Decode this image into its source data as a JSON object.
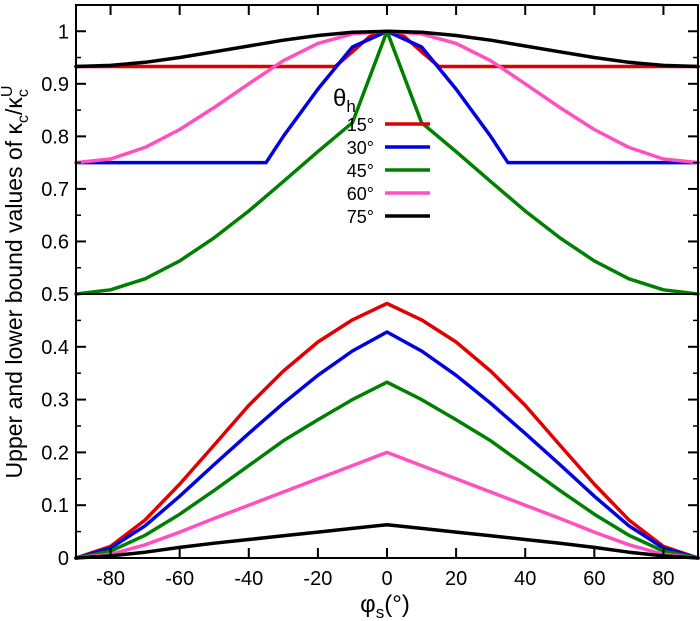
{
  "chart_data": {
    "type": "line",
    "xlabel": "φs(°)",
    "ylabel": "Upper and lower bound values of κc/κc^U",
    "x_ticks": [
      -80,
      -60,
      -40,
      -20,
      0,
      20,
      40,
      60,
      80
    ],
    "xlim": [
      -90,
      90
    ],
    "grid": false,
    "legend_title": "θh",
    "legend_position": "upper panel, center",
    "panels": [
      {
        "name": "upper",
        "ylim": [
          0.5,
          1.05
        ],
        "y_ticks": [
          0.5,
          0.6,
          0.7,
          0.8,
          0.9,
          1.0
        ],
        "y_tick_labels": [
          "0.5",
          "0.6",
          "0.7",
          "0.8",
          "0.9",
          "1"
        ],
        "series": [
          {
            "name": "15°",
            "color": "#e00000",
            "x": [
              -90,
              -20,
              -15,
              -10,
              -5,
              0,
              5,
              10,
              15,
              20,
              90
            ],
            "y": [
              0.933,
              0.933,
              0.933,
              0.961,
              0.99,
              1.0,
              0.99,
              0.961,
              0.933,
              0.933,
              0.933
            ]
          },
          {
            "name": "30°",
            "color": "#0000e0",
            "x": [
              -90,
              -35,
              -30,
              -20,
              -10,
              0,
              10,
              20,
              30,
              35,
              90
            ],
            "y": [
              0.75,
              0.75,
              0.8,
              0.89,
              0.97,
              1.0,
              0.97,
              0.89,
              0.8,
              0.75,
              0.75
            ]
          },
          {
            "name": "45°",
            "color": "#008000",
            "x": [
              -90,
              -80,
              -70,
              -60,
              -50,
              -40,
              -30,
              -20,
              -10,
              0,
              10,
              20,
              30,
              40,
              50,
              60,
              70,
              80,
              90
            ],
            "y": [
              0.5,
              0.508,
              0.529,
              0.563,
              0.607,
              0.658,
              0.714,
              0.771,
              0.826,
              1.0,
              0.826,
              0.771,
              0.714,
              0.658,
              0.607,
              0.563,
              0.529,
              0.508,
              0.5
            ]
          },
          {
            "name": "60°",
            "color": "#ff4fc0",
            "x": [
              -90,
              -80,
              -70,
              -60,
              -50,
              -40,
              -30,
              -20,
              -10,
              0,
              10,
              20,
              30,
              40,
              50,
              60,
              70,
              80,
              90
            ],
            "y": [
              0.75,
              0.757,
              0.779,
              0.813,
              0.855,
              0.9,
              0.944,
              0.977,
              0.995,
              1.0,
              0.995,
              0.977,
              0.944,
              0.9,
              0.855,
              0.813,
              0.779,
              0.757,
              0.75
            ]
          },
          {
            "name": "75°",
            "color": "#000000",
            "x": [
              -90,
              -80,
              -70,
              -60,
              -50,
              -40,
              -30,
              -20,
              -10,
              0,
              10,
              20,
              30,
              40,
              50,
              60,
              70,
              80,
              90
            ],
            "y": [
              0.933,
              0.935,
              0.941,
              0.95,
              0.961,
              0.972,
              0.983,
              0.992,
              0.998,
              1.0,
              0.998,
              0.992,
              0.983,
              0.972,
              0.961,
              0.95,
              0.941,
              0.935,
              0.933
            ]
          }
        ]
      },
      {
        "name": "lower",
        "ylim": [
          0,
          0.5
        ],
        "y_ticks": [
          0,
          0.1,
          0.2,
          0.3,
          0.4
        ],
        "y_tick_labels": [
          "0",
          "0.1",
          "0.2",
          "0.3",
          "0.4"
        ],
        "series": [
          {
            "name": "15°",
            "color": "#e00000",
            "x": [
              -90,
              -80,
              -70,
              -60,
              -50,
              -40,
              -30,
              -20,
              -10,
              0,
              10,
              20,
              30,
              40,
              50,
              60,
              70,
              80,
              90
            ],
            "y": [
              0.0,
              0.022,
              0.072,
              0.14,
              0.214,
              0.289,
              0.354,
              0.409,
              0.451,
              0.482,
              0.451,
              0.409,
              0.354,
              0.289,
              0.214,
              0.14,
              0.072,
              0.022,
              0.0
            ]
          },
          {
            "name": "30°",
            "color": "#0000e0",
            "x": [
              -90,
              -80,
              -70,
              -60,
              -50,
              -40,
              -30,
              -20,
              -10,
              0,
              10,
              20,
              30,
              40,
              50,
              60,
              70,
              80,
              90
            ],
            "y": [
              0.0,
              0.019,
              0.061,
              0.117,
              0.177,
              0.236,
              0.293,
              0.346,
              0.392,
              0.428,
              0.392,
              0.346,
              0.293,
              0.236,
              0.177,
              0.117,
              0.061,
              0.019,
              0.0
            ]
          },
          {
            "name": "45°",
            "color": "#008000",
            "x": [
              -90,
              -80,
              -70,
              -60,
              -50,
              -40,
              -30,
              -20,
              -10,
              0,
              10,
              20,
              30,
              40,
              50,
              60,
              70,
              80,
              90
            ],
            "y": [
              0.0,
              0.013,
              0.043,
              0.083,
              0.128,
              0.175,
              0.222,
              0.262,
              0.3,
              0.333,
              0.3,
              0.262,
              0.222,
              0.175,
              0.128,
              0.083,
              0.043,
              0.013,
              0.0
            ]
          },
          {
            "name": "60°",
            "color": "#ff4fc0",
            "x": [
              -90,
              -80,
              -70,
              -60,
              -50,
              -40,
              -30,
              -20,
              -10,
              0,
              10,
              20,
              30,
              40,
              50,
              60,
              70,
              80,
              90
            ],
            "y": [
              0.0,
              0.007,
              0.025,
              0.049,
              0.075,
              0.1,
              0.125,
              0.15,
              0.175,
              0.2,
              0.175,
              0.15,
              0.125,
              0.1,
              0.075,
              0.049,
              0.025,
              0.007,
              0.0
            ]
          },
          {
            "name": "75°",
            "color": "#000000",
            "x": [
              -90,
              -80,
              -70,
              -60,
              -50,
              -40,
              -30,
              -20,
              -10,
              0,
              10,
              20,
              30,
              40,
              50,
              60,
              70,
              80,
              90
            ],
            "y": [
              0.0,
              0.004,
              0.011,
              0.02,
              0.028,
              0.035,
              0.042,
              0.049,
              0.056,
              0.063,
              0.056,
              0.049,
              0.042,
              0.035,
              0.028,
              0.02,
              0.011,
              0.004,
              0.0
            ]
          }
        ]
      }
    ]
  }
}
